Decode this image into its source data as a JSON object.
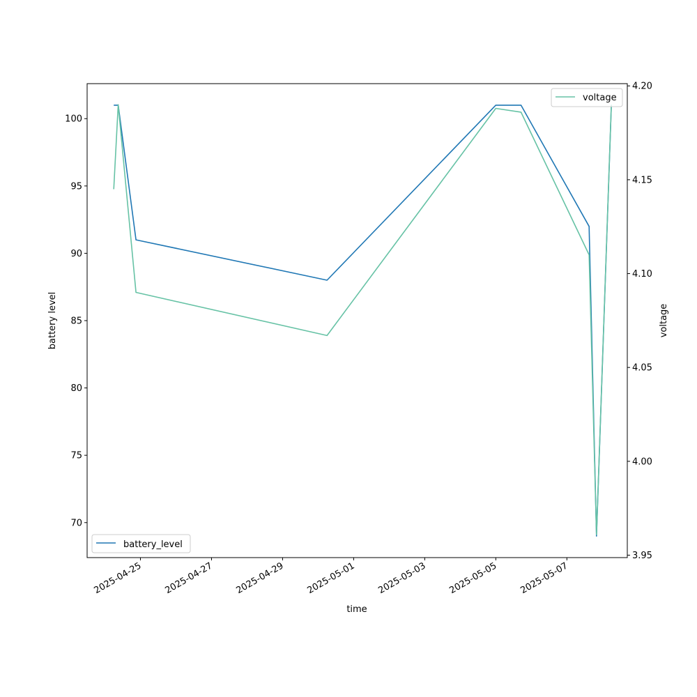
{
  "chart_data": {
    "type": "line",
    "xlabel": "time",
    "ylabel_left": "battery level",
    "ylabel_right": "voltage",
    "x_ticks": [
      "2025-04-25",
      "2025-04-27",
      "2025-04-29",
      "2025-05-01",
      "2025-05-03",
      "2025-05-05",
      "2025-05-07"
    ],
    "left_ticks": [
      "70",
      "75",
      "80",
      "85",
      "90",
      "95",
      "100"
    ],
    "right_ticks": [
      "3.95",
      "4.00",
      "4.05",
      "4.10",
      "4.15",
      "4.20"
    ],
    "xlim": [
      "2025-04-23 12:00",
      "2025-05-08 16:48"
    ],
    "ylim_left": [
      67.4,
      102.6
    ],
    "ylim_right": [
      3.9487,
      4.2012
    ],
    "series": [
      {
        "name": "battery_level",
        "axis": "left",
        "color": "#1f77b4",
        "legend_position": "lower-left",
        "points": [
          [
            "2025-04-24 06:00",
            101
          ],
          [
            "2025-04-24 09:00",
            101
          ],
          [
            "2025-04-24 21:00",
            91
          ],
          [
            "2025-04-30 06:00",
            88
          ],
          [
            "2025-05-05 00:00",
            101
          ],
          [
            "2025-05-05 17:00",
            101
          ],
          [
            "2025-05-07 15:00",
            92
          ],
          [
            "2025-05-07 20:00",
            69
          ],
          [
            "2025-05-08 06:00",
            101
          ]
        ]
      },
      {
        "name": "voltage",
        "axis": "right",
        "color": "#66c2a5",
        "legend_position": "upper-right",
        "points": [
          [
            "2025-04-24 06:00",
            4.145
          ],
          [
            "2025-04-24 09:00",
            4.19
          ],
          [
            "2025-04-24 21:00",
            4.09
          ],
          [
            "2025-04-30 06:00",
            4.067
          ],
          [
            "2025-05-05 00:00",
            4.188
          ],
          [
            "2025-05-05 17:00",
            4.186
          ],
          [
            "2025-05-07 15:00",
            4.11
          ],
          [
            "2025-05-07 20:00",
            3.961
          ],
          [
            "2025-05-08 06:00",
            4.19
          ]
        ]
      }
    ]
  }
}
